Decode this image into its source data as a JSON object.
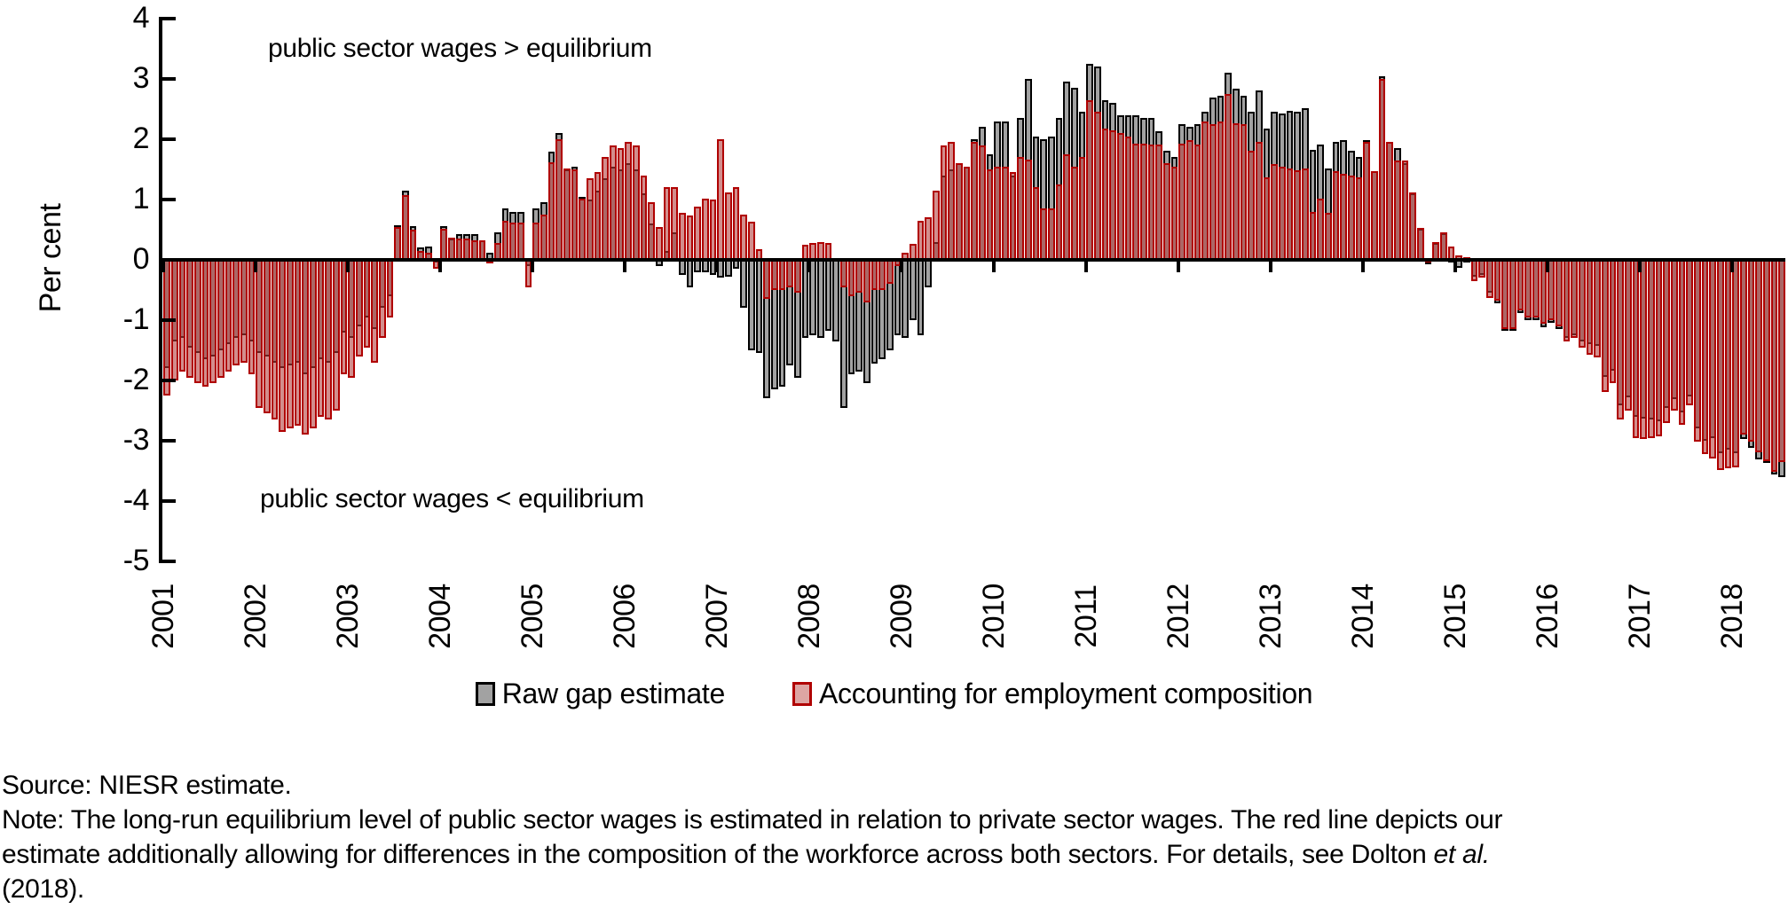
{
  "figure": {
    "ylabel": "Per cent",
    "annotation_above": "public sector wages > equilibrium",
    "annotation_below": "public sector wages < equilibrium"
  },
  "legend": {
    "raw_label": "Raw gap estimate",
    "adjusted_label": "Accounting for employment composition"
  },
  "footer": {
    "source_line": "Source: NIESR estimate.",
    "note_line1": "Note: The long-run equilibrium level of public sector wages is estimated in relation to private sector wages. The red line depicts our",
    "note_line2_pre": "estimate additionally allowing for differences in the composition of the workforce across both sectors. For details, see Dolton ",
    "note_line2_italic": "et al.",
    "note_line3": "(2018)."
  },
  "chart_data": {
    "type": "bar",
    "title": "",
    "xlabel": "",
    "ylabel": "Per cent",
    "ylim": [
      -5,
      4
    ],
    "y_ticks": [
      4,
      3,
      2,
      1,
      0,
      -1,
      -2,
      -3,
      -4,
      -5
    ],
    "x_tick_years": [
      "2001",
      "2002",
      "2003",
      "2004",
      "2005",
      "2006",
      "2007",
      "2008",
      "2009",
      "2010",
      "2011",
      "2012",
      "2013",
      "2014",
      "2015",
      "2016",
      "2017",
      "2018"
    ],
    "frequency": "monthly",
    "start": "2001-01",
    "end": "2018-07",
    "grid": false,
    "legend_position": "bottom",
    "annotations": [
      "public sector wages > equilibrium",
      "public sector wages < equilibrium"
    ],
    "colors": {
      "raw_fill": "#a2a2a2",
      "raw_outline": "#000000",
      "adjusted_fill_overlay": "rgba(178,60,58,0.58)",
      "adjusted_fill_solid": "#dda5a3",
      "adjusted_outline": "#b00000"
    },
    "series": [
      {
        "name": "Raw gap estimate",
        "values": [
          -1.8,
          -1.35,
          -1.3,
          -1.45,
          -1.55,
          -1.65,
          -1.6,
          -1.5,
          -1.4,
          -1.3,
          -1.25,
          -1.35,
          -1.55,
          -1.6,
          -1.7,
          -1.8,
          -1.75,
          -1.7,
          -1.9,
          -1.8,
          -1.65,
          -1.7,
          -1.55,
          -1.2,
          -1.3,
          -1.1,
          -0.95,
          -1.15,
          -0.8,
          -0.6,
          0.58,
          1.15,
          0.56,
          0.2,
          0.22,
          -0.05,
          0.56,
          0.35,
          0.42,
          0.42,
          0.42,
          0.32,
          0.12,
          0.45,
          0.85,
          0.8,
          0.8,
          -0.1,
          0.85,
          0.95,
          1.8,
          2.1,
          1.5,
          1.55,
          1.05,
          1.0,
          1.15,
          1.35,
          1.55,
          1.5,
          1.6,
          1.5,
          1.1,
          0.6,
          -0.1,
          0.15,
          0.45,
          -0.25,
          -0.45,
          -0.2,
          -0.2,
          -0.25,
          -0.3,
          -0.28,
          -0.15,
          -0.8,
          -1.5,
          -1.55,
          -2.3,
          -2.15,
          -2.1,
          -1.75,
          -1.95,
          -1.3,
          -1.25,
          -1.3,
          -1.18,
          -1.35,
          -2.45,
          -1.9,
          -1.85,
          -2.05,
          -1.72,
          -1.65,
          -1.5,
          -1.25,
          -1.3,
          -1.0,
          -1.25,
          -0.45,
          0.3,
          1.4,
          1.5,
          1.6,
          1.55,
          2.0,
          2.2,
          1.75,
          2.3,
          2.3,
          1.4,
          2.35,
          3.0,
          2.05,
          2.0,
          2.05,
          2.35,
          2.95,
          2.85,
          2.45,
          3.25,
          3.2,
          2.65,
          2.6,
          2.4,
          2.4,
          2.4,
          2.35,
          2.35,
          2.13,
          1.81,
          1.71,
          2.25,
          2.2,
          2.25,
          2.45,
          2.69,
          2.72,
          3.1,
          2.84,
          2.72,
          2.45,
          2.81,
          2.18,
          2.45,
          2.42,
          2.47,
          2.45,
          2.52,
          1.83,
          1.91,
          1.51,
          1.96,
          1.98,
          1.81,
          1.71,
          1.98,
          1.47,
          3.05,
          1.96,
          1.85,
          1.61,
          1.1,
          0.51,
          -0.08,
          0.28,
          0.44,
          -0.05,
          -0.13,
          0.02,
          -0.28,
          -0.25,
          -0.54,
          -0.72,
          -1.18,
          -1.18,
          -0.88,
          -1.0,
          -1.0,
          -1.11,
          -1.05,
          -1.15,
          -1.3,
          -1.25,
          -1.35,
          -1.4,
          -1.43,
          -1.94,
          -1.84,
          -2.41,
          -2.28,
          -2.6,
          -2.63,
          -2.65,
          -2.68,
          -2.46,
          -2.31,
          -2.53,
          -2.26,
          -2.8,
          -3.0,
          -2.95,
          -3.2,
          -3.15,
          -3.2,
          -2.97,
          -3.12,
          -3.31,
          -3.36,
          -3.56,
          -3.6
        ]
      },
      {
        "name": "Accounting for employment composition",
        "values": [
          -2.25,
          -2.0,
          -1.85,
          -1.95,
          -2.05,
          -2.1,
          -2.05,
          -1.95,
          -1.85,
          -1.75,
          -1.7,
          -1.9,
          -2.45,
          -2.55,
          -2.65,
          -2.85,
          -2.8,
          -2.75,
          -2.9,
          -2.8,
          -2.6,
          -2.65,
          -2.5,
          -1.9,
          -1.95,
          -1.6,
          -1.45,
          -1.7,
          -1.3,
          -0.95,
          0.55,
          1.07,
          0.5,
          0.15,
          0.12,
          -0.15,
          0.52,
          0.37,
          0.35,
          0.35,
          0.32,
          0.33,
          0.0,
          0.28,
          0.65,
          0.62,
          0.62,
          -0.45,
          0.62,
          0.75,
          1.62,
          2.0,
          1.52,
          1.5,
          1.02,
          1.35,
          1.45,
          1.7,
          1.9,
          1.85,
          1.95,
          1.9,
          1.4,
          0.95,
          0.55,
          1.2,
          1.2,
          0.78,
          0.73,
          0.88,
          1.02,
          1.0,
          2.0,
          1.12,
          1.2,
          0.75,
          0.63,
          0.17,
          -0.65,
          -0.5,
          -0.5,
          -0.45,
          -0.55,
          0.25,
          0.28,
          0.3,
          0.28,
          0.03,
          -0.45,
          -0.6,
          -0.55,
          -0.7,
          -0.5,
          -0.5,
          -0.4,
          -0.1,
          0.12,
          0.27,
          0.65,
          0.7,
          1.15,
          1.9,
          1.95,
          1.6,
          1.55,
          1.95,
          1.9,
          1.5,
          1.55,
          1.55,
          1.45,
          1.7,
          1.66,
          1.2,
          0.85,
          0.85,
          1.25,
          1.75,
          1.55,
          1.7,
          2.65,
          2.45,
          2.18,
          2.15,
          2.1,
          2.05,
          1.93,
          1.93,
          1.91,
          1.91,
          1.61,
          1.54,
          1.93,
          1.98,
          1.91,
          2.3,
          2.25,
          2.3,
          2.75,
          2.27,
          2.25,
          1.81,
          1.96,
          1.37,
          1.59,
          1.54,
          1.51,
          1.49,
          1.51,
          0.8,
          1.02,
          0.78,
          1.47,
          1.42,
          1.39,
          1.37,
          1.96,
          1.47,
          3.0,
          1.96,
          1.65,
          1.64,
          1.12,
          0.53,
          0.02,
          0.29,
          0.46,
          0.22,
          0.07,
          0.04,
          -0.35,
          -0.3,
          -0.63,
          -0.68,
          -1.15,
          -1.15,
          -0.84,
          -0.95,
          -0.95,
          -1.06,
          -1.0,
          -1.1,
          -1.35,
          -1.3,
          -1.45,
          -1.57,
          -1.62,
          -2.19,
          -2.04,
          -2.65,
          -2.5,
          -2.95,
          -2.97,
          -2.95,
          -2.92,
          -2.7,
          -2.5,
          -2.73,
          -2.41,
          -3.02,
          -3.22,
          -3.29,
          -3.49,
          -3.46,
          -3.44,
          -2.9,
          -3.01,
          -3.19,
          -3.34,
          -3.51,
          -3.35
        ]
      }
    ]
  }
}
